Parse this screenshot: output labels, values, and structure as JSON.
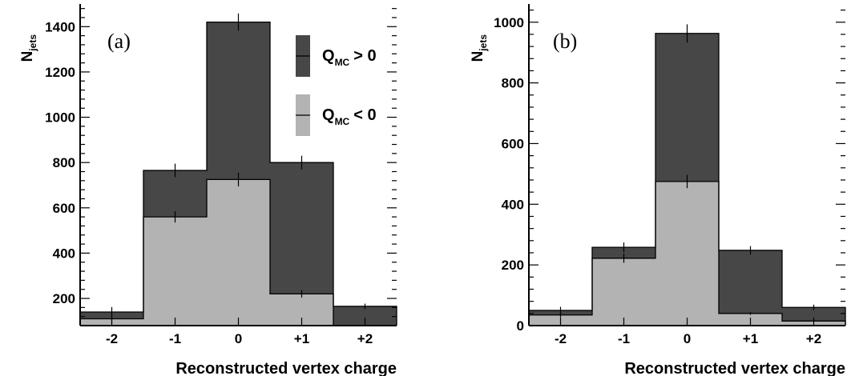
{
  "chart_data": [
    {
      "type": "bar",
      "stacked_overlay": true,
      "panel_label": "(a)",
      "categories": [
        "-2",
        "-1",
        "0",
        "+1",
        "+2"
      ],
      "series": [
        {
          "name": "Q_MC > 0",
          "color": "#474747",
          "values": [
            140,
            765,
            1420,
            800,
            165
          ],
          "errors": [
            22,
            30,
            38,
            30,
            12
          ]
        },
        {
          "name": "Q_MC < 0",
          "color": "#b3b3b3",
          "values": [
            110,
            560,
            725,
            220,
            0
          ],
          "errors": [
            18,
            25,
            30,
            16,
            0
          ]
        }
      ],
      "xlabel": "Reconstructed vertex charge",
      "ylabel": "N",
      "ylabel_sub": "jets",
      "yticks": [
        200,
        400,
        600,
        800,
        1000,
        1200,
        1400
      ],
      "ylim": [
        80,
        1500
      ],
      "legend": [
        {
          "main": "Q",
          "sub": "MC",
          "rel": "> 0",
          "color": "#474747"
        },
        {
          "main": "Q",
          "sub": "MC",
          "rel": "< 0",
          "color": "#b3b3b3"
        }
      ]
    },
    {
      "type": "bar",
      "stacked_overlay": true,
      "panel_label": "(b)",
      "categories": [
        "-2",
        "-1",
        "0",
        "+1",
        "+2"
      ],
      "series": [
        {
          "name": "Q_MC > 0",
          "color": "#474747",
          "values": [
            50,
            258,
            963,
            248,
            60
          ],
          "errors": [
            12,
            16,
            30,
            14,
            9
          ]
        },
        {
          "name": "Q_MC < 0",
          "color": "#b3b3b3",
          "values": [
            35,
            222,
            475,
            40,
            15
          ],
          "errors": [
            8,
            15,
            22,
            5,
            4
          ]
        }
      ],
      "xlabel": "Reconstructed vertex charge",
      "ylabel": "N",
      "ylabel_sub": "jets",
      "yticks": [
        0,
        200,
        400,
        600,
        800,
        1000
      ],
      "ylim": [
        0,
        1060
      ]
    }
  ]
}
